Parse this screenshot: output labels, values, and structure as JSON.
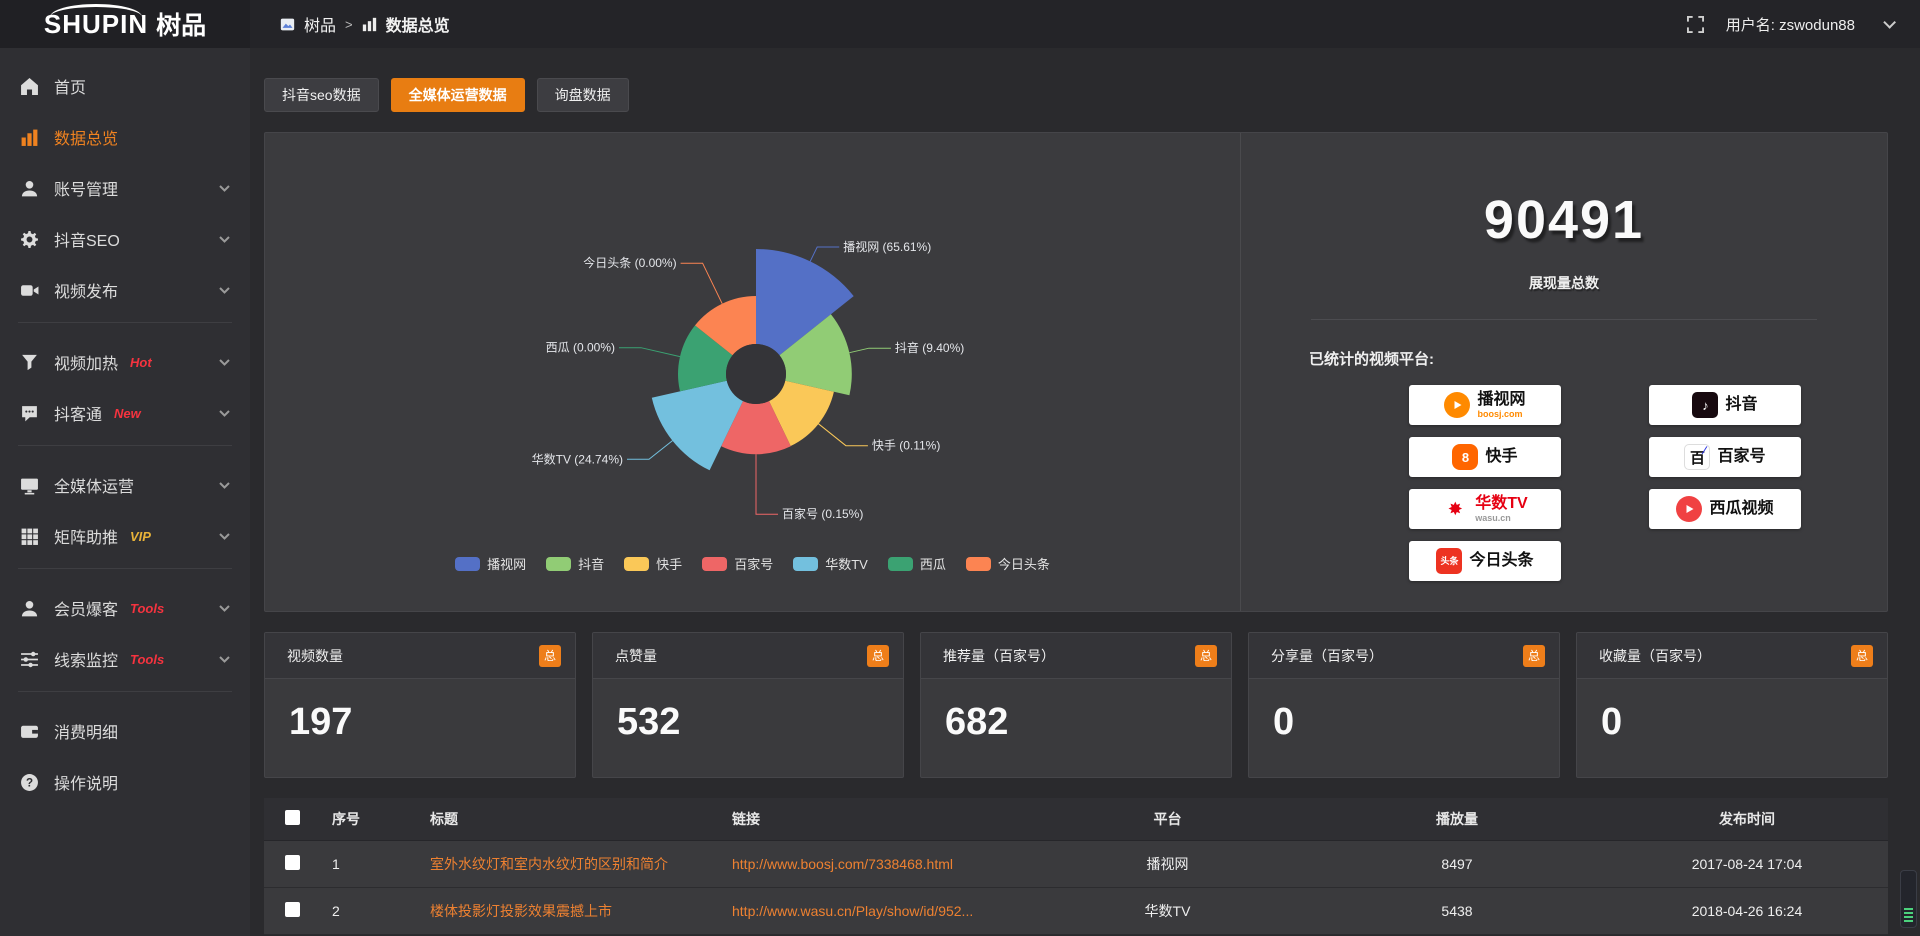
{
  "topbar": {
    "logo_en": "SHUPIN",
    "logo_cn": "树品",
    "breadcrumb": {
      "app": "树品",
      "separator": ">",
      "page": "数据总览"
    },
    "username": "用户名: zswodun88"
  },
  "sidebar": {
    "items": [
      {
        "label": "首页",
        "icon": "home",
        "tag": "",
        "tag_color": "",
        "chevron": false,
        "active": false,
        "divider_after": false
      },
      {
        "label": "数据总览",
        "icon": "chart",
        "tag": "",
        "tag_color": "",
        "chevron": false,
        "active": true,
        "divider_after": false
      },
      {
        "label": "账号管理",
        "icon": "user",
        "tag": "",
        "tag_color": "",
        "chevron": true,
        "active": false,
        "divider_after": false
      },
      {
        "label": "抖音SEO",
        "icon": "gear",
        "tag": "",
        "tag_color": "",
        "chevron": true,
        "active": false,
        "divider_after": false
      },
      {
        "label": "视频发布",
        "icon": "video",
        "tag": "",
        "tag_color": "",
        "chevron": true,
        "active": false,
        "divider_after": true
      },
      {
        "label": "视频加热",
        "icon": "funnel",
        "tag": "Hot",
        "tag_color": "#f5333f",
        "chevron": true,
        "active": false,
        "divider_after": false
      },
      {
        "label": "抖客通",
        "icon": "chat",
        "tag": "New",
        "tag_color": "#f5333f",
        "chevron": true,
        "active": false,
        "divider_after": true
      },
      {
        "label": "全媒体运营",
        "icon": "monitor",
        "tag": "",
        "tag_color": "",
        "chevron": true,
        "active": false,
        "divider_after": false
      },
      {
        "label": "矩阵助推",
        "icon": "grid",
        "tag": "VIP",
        "tag_color": "#e8b339",
        "chevron": true,
        "active": false,
        "divider_after": true
      },
      {
        "label": "会员爆客",
        "icon": "user2",
        "tag": "Tools",
        "tag_color": "#f5333f",
        "chevron": true,
        "active": false,
        "divider_after": false
      },
      {
        "label": "线索监控",
        "icon": "sliders",
        "tag": "Tools",
        "tag_color": "#f5333f",
        "chevron": true,
        "active": false,
        "divider_after": true
      },
      {
        "label": "消费明细",
        "icon": "wallet",
        "tag": "",
        "tag_color": "",
        "chevron": false,
        "active": false,
        "divider_after": false
      },
      {
        "label": "操作说明",
        "icon": "question",
        "tag": "",
        "tag_color": "",
        "chevron": false,
        "active": false,
        "divider_after": false
      }
    ]
  },
  "tabs": [
    {
      "label": "抖音seo数据",
      "active": false
    },
    {
      "label": "全媒体运营数据",
      "active": true
    },
    {
      "label": "询盘数据",
      "active": false
    }
  ],
  "chart_data": {
    "type": "pie",
    "subtype": "nightingale-rose",
    "categories": [
      "播视网",
      "抖音",
      "快手",
      "百家号",
      "华数TV",
      "西瓜",
      "今日头条"
    ],
    "values_percent": [
      65.61,
      9.4,
      0.11,
      0.15,
      24.74,
      0.0,
      0.0
    ],
    "label_format": "{name} ({percent}%)",
    "colors": [
      "#5470c6",
      "#91cc75",
      "#fac858",
      "#ee6666",
      "#73c0de",
      "#3ba272",
      "#fc8452"
    ],
    "legend_position": "bottom",
    "legend": [
      "播视网",
      "抖音",
      "快手",
      "百家号",
      "华数TV",
      "西瓜",
      "今日头条"
    ]
  },
  "summary": {
    "total_value": "90491",
    "total_label": "展现量总数",
    "platforms_title": "已统计的视频平台:",
    "platforms": [
      {
        "name": "播视网",
        "sub": "boosj.com",
        "sub_color": "#ff8a00",
        "name_color": "#111111",
        "logo": "play",
        "logo_color": "#ff8a00",
        "logo_shape": "circle"
      },
      {
        "name": "抖音",
        "sub": "",
        "sub_color": "",
        "name_color": "#111111",
        "logo": "note",
        "logo_color": "#17090f",
        "logo_shape": "square"
      },
      {
        "name": "快手",
        "sub": "",
        "sub_color": "",
        "name_color": "#111111",
        "logo": "kuai",
        "logo_color": "#ff6600",
        "logo_shape": "square"
      },
      {
        "name": "百家号",
        "sub": "",
        "sub_color": "",
        "name_color": "#111111",
        "logo": "bai",
        "logo_color": "#ffffff",
        "logo_shape": "square"
      },
      {
        "name": "华数TV",
        "sub": "wasu.cn",
        "sub_color": "#999999",
        "name_color": "#e60012",
        "logo": "burst",
        "logo_color": "#e60012",
        "logo_shape": "circle"
      },
      {
        "name": "西瓜视频",
        "sub": "",
        "sub_color": "",
        "name_color": "#111111",
        "logo": "play",
        "logo_color": "#f04142",
        "logo_shape": "circle"
      },
      {
        "name": "今日头条",
        "sub": "",
        "sub_color": "",
        "name_color": "#111111",
        "logo": "toutiao",
        "logo_color": "#ed3321",
        "logo_shape": "square"
      }
    ]
  },
  "stat_cards": [
    {
      "title": "视频数量",
      "badge": "总",
      "value": "197"
    },
    {
      "title": "点赞量",
      "badge": "总",
      "value": "532"
    },
    {
      "title": "推荐量（百家号）",
      "badge": "总",
      "value": "682"
    },
    {
      "title": "分享量（百家号）",
      "badge": "总",
      "value": "0"
    },
    {
      "title": "收藏量（百家号）",
      "badge": "总",
      "value": "0"
    }
  ],
  "table": {
    "headers": [
      "序号",
      "标题",
      "链接",
      "平台",
      "播放量",
      "发布时间"
    ],
    "rows": [
      {
        "num": "1",
        "title": "室外水纹灯和室内水纹灯的区别和简介",
        "link": "http://www.boosj.com/7338468.html",
        "platform": "播视网",
        "plays": "8497",
        "time": "2017-08-24 17:04"
      },
      {
        "num": "2",
        "title": "楼体投影灯投影效果震撼上市",
        "link": "http://www.wasu.cn/Play/show/id/952...",
        "platform": "华数TV",
        "plays": "5438",
        "time": "2018-04-26 16:24"
      }
    ]
  },
  "colors": {
    "accent_orange": "#e87d12",
    "link_orange": "#ee8131",
    "tag_red": "#f5333f",
    "tag_gold": "#e8b339"
  }
}
